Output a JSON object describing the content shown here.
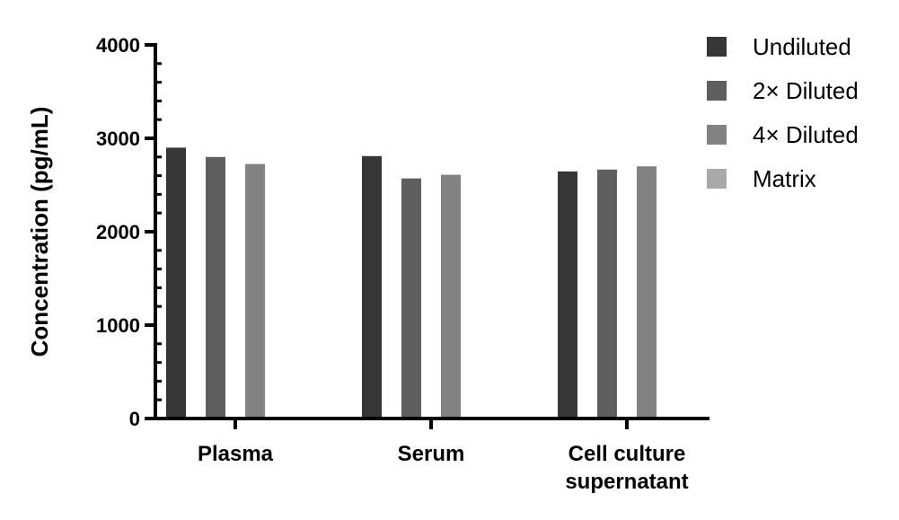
{
  "chart_data": {
    "type": "bar",
    "ylabel": "Concentration (pg/mL)",
    "ylim": [
      0,
      4000
    ],
    "yticks": [
      0,
      1000,
      2000,
      3000,
      4000
    ],
    "categories": [
      [
        "Plasma"
      ],
      [
        "Serum"
      ],
      [
        "Cell culture",
        "supernatant"
      ]
    ],
    "series": [
      {
        "name": "Undiluted",
        "color": "#363636",
        "values": [
          2900,
          2810,
          2645
        ]
      },
      {
        "name": "2× Diluted",
        "color": "#5f5f5f",
        "values": [
          2800,
          2570,
          2665
        ]
      },
      {
        "name": "4× Diluted",
        "color": "#828282",
        "values": [
          2725,
          2610,
          2700
        ]
      },
      {
        "name": "Matrix",
        "color": "#a9a9ad",
        "values": [
          18,
          15,
          18
        ]
      }
    ],
    "legend": "right",
    "grid": false
  }
}
